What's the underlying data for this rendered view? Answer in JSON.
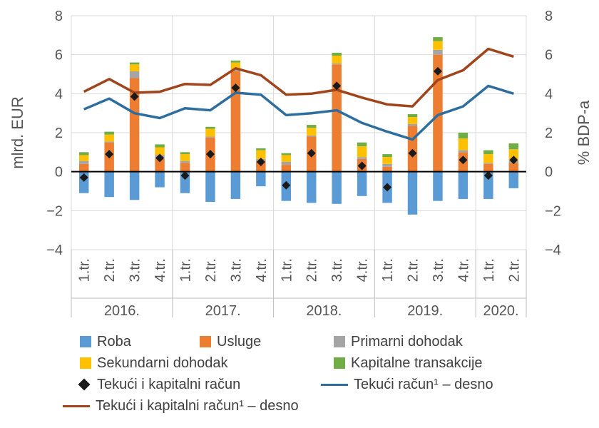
{
  "chart_data": {
    "type": "bar",
    "y_left_label": "mlrd. EUR",
    "y_right_label": "% BDP-a",
    "ylim": [
      -4,
      8
    ],
    "y_ticks": [
      "−4",
      "−2",
      "0",
      "2",
      "4",
      "6",
      "8"
    ],
    "y_tick_values": [
      -4,
      -2,
      0,
      2,
      4,
      6,
      8
    ],
    "categories": [
      "1.tr.",
      "2.tr.",
      "3.tr.",
      "4.tr.",
      "1.tr.",
      "2.tr.",
      "3.tr.",
      "4.tr.",
      "1.tr.",
      "2.tr.",
      "3.tr.",
      "4.tr.",
      "1.tr.",
      "2.tr.",
      "3.tr.",
      "4.tr.",
      "1.tr.",
      "2.tr."
    ],
    "years": [
      {
        "label": "2016.",
        "count": 4
      },
      {
        "label": "2017.",
        "count": 4
      },
      {
        "label": "2018.",
        "count": 4
      },
      {
        "label": "2019.",
        "count": 4
      },
      {
        "label": "2020.",
        "count": 2
      }
    ],
    "series": [
      {
        "name": "Roba",
        "kind": "bar",
        "color": "#5b9bd5",
        "values": [
          -1.1,
          -1.3,
          -1.45,
          -0.8,
          -1.1,
          -1.55,
          -1.4,
          -0.75,
          -1.5,
          -1.6,
          -1.65,
          -1.25,
          -1.6,
          -2.2,
          -1.5,
          -1.4,
          -1.4,
          -0.85
        ]
      },
      {
        "name": "Usluge",
        "kind": "bar",
        "color": "#ed7d31",
        "values": [
          0.4,
          1.5,
          4.8,
          0.65,
          0.45,
          1.75,
          5.15,
          0.55,
          0.35,
          1.8,
          5.5,
          0.65,
          0.25,
          2.35,
          6.0,
          1.0,
          0.4,
          0.45
        ]
      },
      {
        "name": "Primarni dohodak",
        "kind": "bar",
        "color": "#a5a5a5",
        "values": [
          0.15,
          0.05,
          0.35,
          0.2,
          0.1,
          0.05,
          0.1,
          0.1,
          0.15,
          0.05,
          0.05,
          0.1,
          0.15,
          0.1,
          0.25,
          0.1,
          0.05,
          0.1
        ]
      },
      {
        "name": "Sekundarni dohodak",
        "kind": "bar",
        "color": "#ffc000",
        "values": [
          0.3,
          0.35,
          0.35,
          0.4,
          0.35,
          0.4,
          0.35,
          0.45,
          0.35,
          0.4,
          0.4,
          0.55,
          0.35,
          0.35,
          0.45,
          0.6,
          0.45,
          0.6
        ]
      },
      {
        "name": "Kapitalne transakcije",
        "kind": "bar",
        "color": "#70ad47",
        "values": [
          0.15,
          0.15,
          0.1,
          0.15,
          0.1,
          0.1,
          0.1,
          0.1,
          0.1,
          0.15,
          0.15,
          0.2,
          0.15,
          0.15,
          0.2,
          0.3,
          0.2,
          0.3
        ]
      },
      {
        "name": "Tekući i kapitalni račun",
        "kind": "marker",
        "color": "#1a1a1a",
        "values": [
          -0.3,
          0.9,
          3.85,
          0.7,
          -0.2,
          0.9,
          4.3,
          0.5,
          -0.7,
          0.95,
          4.4,
          0.3,
          -0.8,
          0.95,
          5.15,
          0.6,
          -0.2,
          0.6
        ]
      },
      {
        "name": "Tekući račun¹ – desno",
        "kind": "line",
        "axis": "right",
        "color": "#2e6e9e",
        "values": [
          3.2,
          3.75,
          3.0,
          2.75,
          3.25,
          3.15,
          4.05,
          3.95,
          2.9,
          3.0,
          3.15,
          2.5,
          2.05,
          1.65,
          2.9,
          3.35,
          4.4,
          4.0
        ]
      },
      {
        "name": "Tekući i kapitalni račun¹ – desno",
        "kind": "line",
        "axis": "right",
        "color": "#a0441c",
        "values": [
          4.1,
          4.75,
          4.05,
          4.1,
          4.5,
          4.45,
          5.3,
          4.95,
          3.95,
          4.0,
          4.2,
          3.8,
          3.45,
          3.35,
          4.7,
          5.2,
          6.3,
          5.9
        ]
      }
    ]
  }
}
